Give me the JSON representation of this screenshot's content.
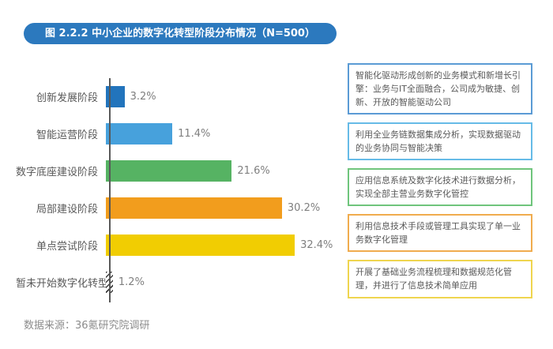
{
  "figure": {
    "title": "图 2.2.2 中小企业的数字化转型阶段分布情况（N=500）",
    "source": "数据来源：36氪研究院调研"
  },
  "colors": {
    "title_bg": "#2C79BE",
    "title_text": "#FFFFFF",
    "axis": "#595959",
    "category_text": "#595959",
    "value_text": "#7F7F7F",
    "source_text": "#8C8C8C"
  },
  "chart_data": {
    "type": "bar",
    "orientation": "horizontal",
    "title": "图 2.2.2 中小企业的数字化转型阶段分布情况（N=500）",
    "categories": [
      "创新发展阶段",
      "智能运营阶段",
      "数字底座建设阶段",
      "局部建设阶段",
      "单点尝试阶段",
      "暂未开始数字化转型"
    ],
    "values": [
      3.2,
      11.4,
      21.6,
      30.2,
      32.4,
      1.2
    ],
    "value_labels": [
      "3.2%",
      "11.4%",
      "21.6%",
      "30.2%",
      "32.4%",
      "1.2%"
    ],
    "unit": "%",
    "bar_colors": [
      "#2274BC",
      "#47A1DC",
      "#56B363",
      "#F29D1D",
      "#F1CD02",
      "hatch-diagonal"
    ],
    "xlim": [
      0,
      35
    ],
    "grid": false,
    "legend": false,
    "source": "数据来源：36氪研究院调研"
  },
  "annotations": [
    {
      "stage": "创新发展阶段",
      "border_color": "#5B9BD5",
      "text": "智能化驱动形成创新的业务模式和新增长引擎：业务与IT全面融合，公司成为敏捷、创新、开放的智能驱动公司"
    },
    {
      "stage": "智能运营阶段",
      "border_color": "#66BBE7",
      "text": "利用全业务链数据集成分析，实现数据驱动的业务协同与智能决策"
    },
    {
      "stage": "数字底座建设阶段",
      "border_color": "#6FC57C",
      "text": "应用信息系统及数字化技术进行数据分析，实现全部主营业务数字化管控"
    },
    {
      "stage": "局部建设阶段",
      "border_color": "#F0AC4E",
      "text": "利用信息技术手段或管理工具实现了单一业务数字化管理"
    },
    {
      "stage": "单点尝试阶段",
      "border_color": "#EFD54F",
      "text": "开展了基础业务流程梳理和数据规范化管理，并进行了信息技术简单应用"
    }
  ]
}
